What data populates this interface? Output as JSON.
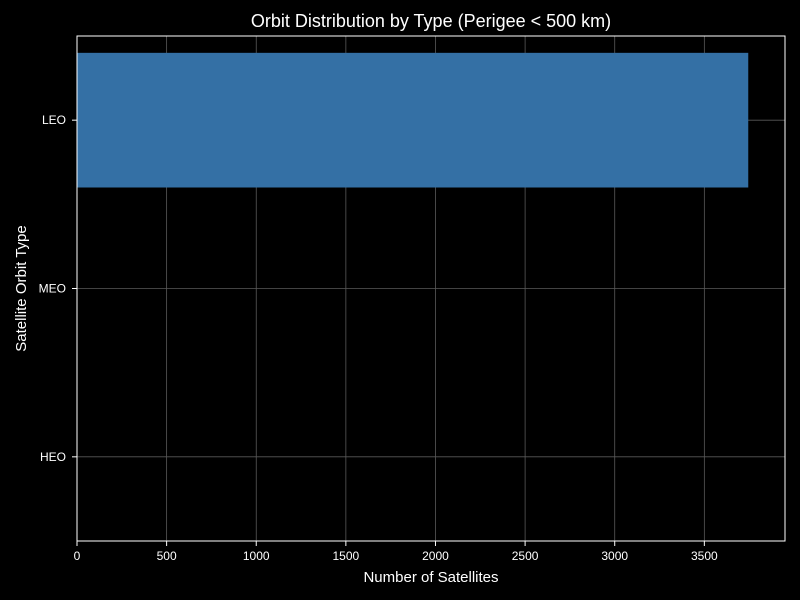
{
  "chart_data": {
    "type": "bar",
    "orientation": "horizontal",
    "title": "Orbit Distribution by Type (Perigee < 500 km)",
    "xlabel": "Number of Satellites",
    "ylabel": "Satellite Orbit Type",
    "categories": [
      "LEO",
      "MEO",
      "HEO"
    ],
    "values": [
      3745,
      0,
      0
    ],
    "xlim": [
      0,
      3950
    ],
    "xticks": [
      0,
      500,
      1000,
      1500,
      2000,
      2500,
      3000,
      3500
    ],
    "grid": true,
    "legend": "none",
    "colors": {
      "bar": "#3470a5",
      "background": "#000000",
      "text": "#ffffff",
      "grid": "#5a5a5a",
      "axes": "#ffffff"
    }
  }
}
